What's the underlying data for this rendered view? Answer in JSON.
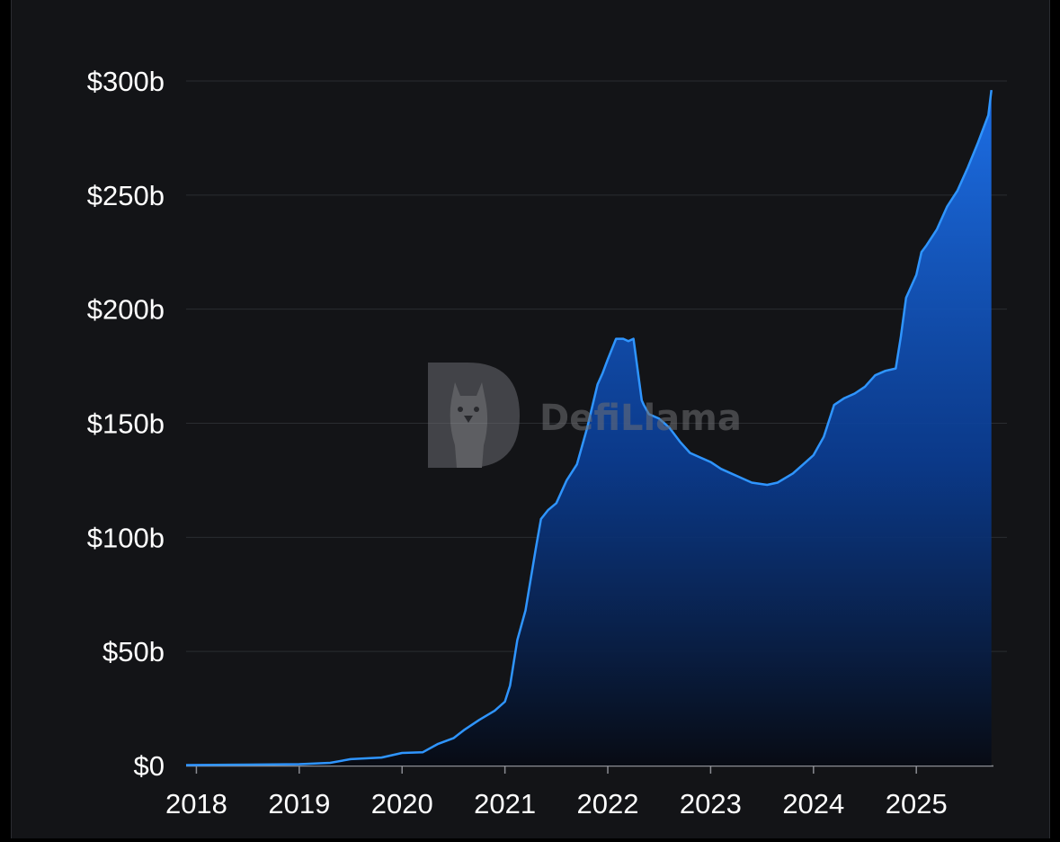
{
  "chart_data": {
    "type": "area",
    "title": "",
    "xlabel": "",
    "ylabel": "",
    "ylim": [
      0,
      300
    ],
    "y_ticks": [
      0,
      50,
      100,
      150,
      200,
      250,
      300
    ],
    "y_tick_labels": [
      "$0",
      "$50b",
      "$100b",
      "$150b",
      "$200b",
      "$250b",
      "$300b"
    ],
    "x_ticks": [
      2018,
      2019,
      2020,
      2021,
      2022,
      2023,
      2024,
      2025
    ],
    "x_tick_labels": [
      "2018",
      "2019",
      "2020",
      "2021",
      "2022",
      "2023",
      "2024",
      "2025"
    ],
    "xlim": [
      2017.9,
      2025.75
    ],
    "grid": "horizontal",
    "series": [
      {
        "x": [
          2017.9,
          2018.5,
          2019.0,
          2019.3,
          2019.5,
          2019.8,
          2020.0,
          2020.2,
          2020.35,
          2020.5,
          2020.6,
          2020.75,
          2020.9,
          2021.0,
          2021.05,
          2021.12,
          2021.2,
          2021.3,
          2021.35,
          2021.42,
          2021.5,
          2021.6,
          2021.7,
          2021.8,
          2021.9,
          2021.95,
          2022.0,
          2022.08,
          2022.15,
          2022.2,
          2022.25,
          2022.33,
          2022.35,
          2022.4,
          2022.5,
          2022.6,
          2022.7,
          2022.8,
          2022.9,
          2023.0,
          2023.1,
          2023.2,
          2023.3,
          2023.4,
          2023.55,
          2023.65,
          2023.8,
          2023.9,
          2024.0,
          2024.1,
          2024.2,
          2024.3,
          2024.4,
          2024.5,
          2024.6,
          2024.7,
          2024.8,
          2024.85,
          2024.9,
          2025.0,
          2025.05,
          2025.1,
          2025.2,
          2025.3,
          2025.4,
          2025.5,
          2025.6,
          2025.7,
          2025.73
        ],
        "values": [
          0.2,
          0.4,
          0.6,
          1.2,
          2.8,
          3.5,
          5.5,
          5.8,
          9.5,
          12,
          15.5,
          20,
          24,
          28,
          35,
          55,
          68,
          95,
          108,
          112,
          115,
          125,
          132,
          148,
          167,
          172,
          178,
          187,
          187,
          186,
          187,
          160,
          158,
          154,
          152,
          148,
          142,
          137,
          135,
          133,
          130,
          128,
          126,
          124,
          123,
          124,
          128,
          132,
          136,
          144,
          158,
          161,
          163,
          166,
          171,
          173,
          174,
          188,
          205,
          215,
          225,
          228,
          235,
          245,
          252,
          262,
          273,
          285,
          296
        ]
      }
    ]
  },
  "watermark": {
    "text": "DefiLlama",
    "icon": "defillama-logo-icon"
  }
}
